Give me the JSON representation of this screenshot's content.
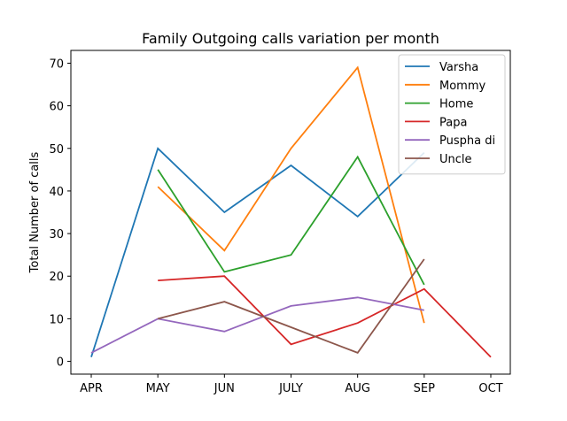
{
  "chart_data": {
    "type": "line",
    "title": "Family Outgoing calls variation per month",
    "xlabel": "",
    "ylabel": "Total Number of calls",
    "categories": [
      "APR",
      "MAY",
      "JUN",
      "JULY",
      "AUG",
      "SEP",
      "OCT"
    ],
    "ylim": [
      -3,
      73
    ],
    "yticks": [
      0,
      10,
      20,
      30,
      40,
      50,
      60,
      70
    ],
    "grid": false,
    "legend_position": "top-right",
    "series": [
      {
        "name": "Varsha",
        "color": "#1f77b4",
        "values": [
          1,
          50,
          35,
          46,
          34,
          49,
          null
        ]
      },
      {
        "name": "Mommy",
        "color": "#ff7f0e",
        "values": [
          null,
          41,
          26,
          50,
          69,
          9,
          null
        ]
      },
      {
        "name": "Home",
        "color": "#2ca02c",
        "values": [
          null,
          45,
          21,
          25,
          48,
          18,
          null
        ]
      },
      {
        "name": "Papa",
        "color": "#d62728",
        "values": [
          null,
          19,
          20,
          4,
          9,
          17,
          1
        ]
      },
      {
        "name": "Puspha di",
        "color": "#9467bd",
        "values": [
          2,
          10,
          7,
          13,
          15,
          12,
          null
        ]
      },
      {
        "name": "Uncle",
        "color": "#8c564b",
        "values": [
          null,
          10,
          14,
          8,
          2,
          24,
          null
        ]
      }
    ]
  }
}
